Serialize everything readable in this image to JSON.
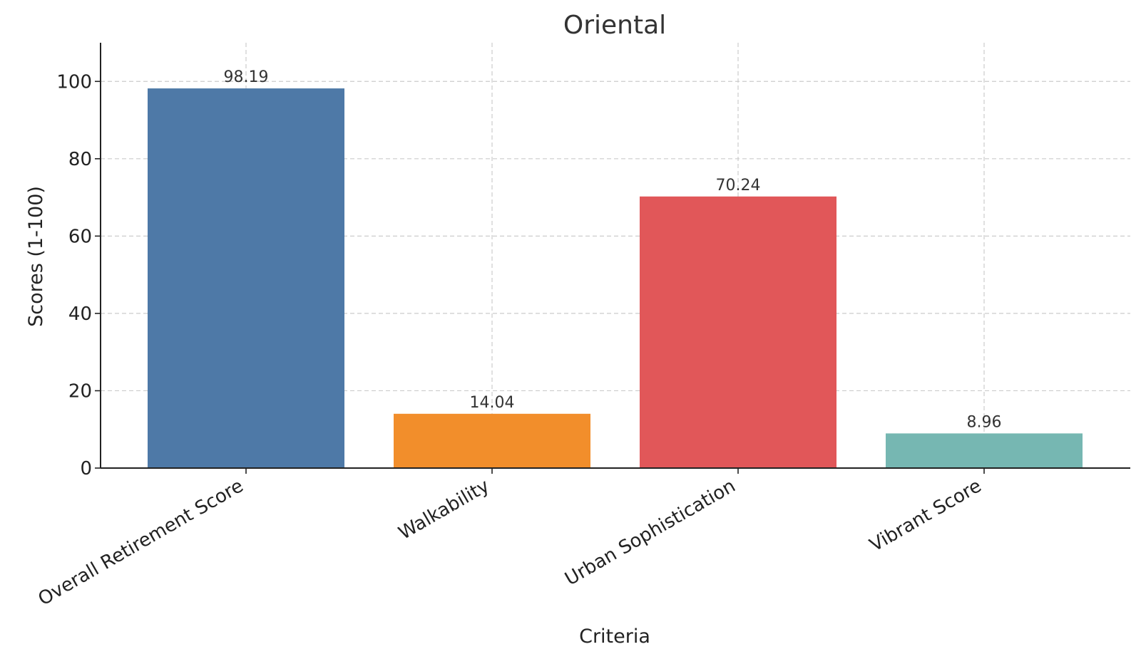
{
  "chart_data": {
    "type": "bar",
    "title": "Oriental",
    "xlabel": "Criteria",
    "ylabel": "Scores (1-100)",
    "categories": [
      "Overall Retirement Score",
      "Walkability",
      "Urban Sophistication",
      "Vibrant Score"
    ],
    "values": [
      98.19,
      14.04,
      70.24,
      8.96
    ],
    "value_labels": [
      "98.19",
      "14.04",
      "70.24",
      "8.96"
    ],
    "colors": [
      "#4e79a7",
      "#f28e2b",
      "#e15759",
      "#76b7b2"
    ],
    "ylim": [
      0,
      110
    ],
    "yticks": [
      0,
      20,
      40,
      60,
      80,
      100
    ],
    "grid": true,
    "legend": "none"
  }
}
